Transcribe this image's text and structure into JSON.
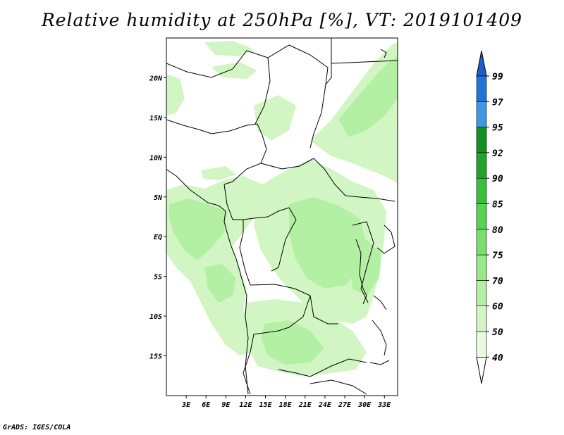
{
  "title": "Relative humidity at 250hPa [%], VT: 2019101409",
  "credit": "GrADS: IGES/COLA",
  "map": {
    "lon_range": [
      0,
      35
    ],
    "lat_range": [
      -20,
      25
    ],
    "lat_ticks": [
      {
        "v": 20,
        "label": "20N"
      },
      {
        "v": 15,
        "label": "15N"
      },
      {
        "v": 10,
        "label": "10N"
      },
      {
        "v": 5,
        "label": "5N"
      },
      {
        "v": 0,
        "label": "EQ"
      },
      {
        "v": -5,
        "label": "5S"
      },
      {
        "v": -10,
        "label": "10S"
      },
      {
        "v": -15,
        "label": "15S"
      }
    ],
    "lon_ticks": [
      {
        "v": 3,
        "label": "3E"
      },
      {
        "v": 6,
        "label": "6E"
      },
      {
        "v": 9,
        "label": "9E"
      },
      {
        "v": 12,
        "label": "12E"
      },
      {
        "v": 15,
        "label": "15E"
      },
      {
        "v": 18,
        "label": "18E"
      },
      {
        "v": 21,
        "label": "21E"
      },
      {
        "v": 24,
        "label": "24E"
      },
      {
        "v": 27,
        "label": "27E"
      },
      {
        "v": 30,
        "label": "30E"
      },
      {
        "v": 33,
        "label": "33E"
      }
    ]
  },
  "colorbar": {
    "levels": [
      "40",
      "50",
      "60",
      "70",
      "75",
      "80",
      "85",
      "90",
      "92",
      "95",
      "97",
      "99"
    ],
    "colors": [
      "#ffffff",
      "#e8fbe0",
      "#d1f6c3",
      "#b4f0a4",
      "#98e98a",
      "#77e06b",
      "#55d353",
      "#35c13b",
      "#1fa52c",
      "#139022",
      "#3f97e5",
      "#2273d8",
      "#1c5fc8"
    ]
  },
  "colors": {
    "light_green": "#d1f6c3",
    "mid_green": "#b4f0a4",
    "border": "#000000"
  }
}
